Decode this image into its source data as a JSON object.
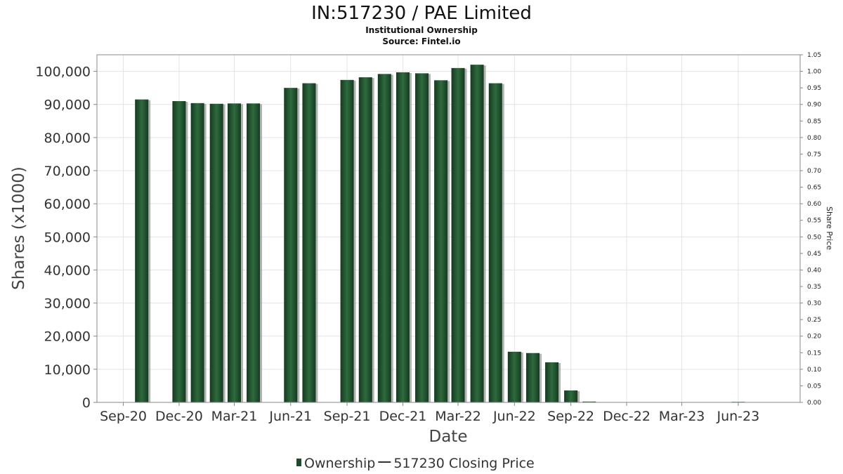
{
  "chart_data": {
    "type": "bar",
    "title": "IN:517230 / PAE Limited",
    "subtitle_1": "Institutional Ownership",
    "subtitle_2": "Source: Fintel.io",
    "xlabel": "Date",
    "ylabel": "Shares (x1000)",
    "y2label": "Share Price",
    "ylim": [
      0,
      105000
    ],
    "y2lim": [
      0,
      1.05
    ],
    "yticks": [
      "0",
      "10,000",
      "20,000",
      "30,000",
      "40,000",
      "50,000",
      "60,000",
      "70,000",
      "80,000",
      "90,000",
      "100,000"
    ],
    "y2ticks": [
      "0.00",
      "0.05",
      "0.10",
      "0.15",
      "0.20",
      "0.25",
      "0.30",
      "0.35",
      "0.40",
      "0.45",
      "0.50",
      "0.55",
      "0.60",
      "0.65",
      "0.70",
      "0.75",
      "0.80",
      "0.85",
      "0.90",
      "0.95",
      "1.00",
      "1.05"
    ],
    "xticks": [
      "Sep-20",
      "Dec-20",
      "Mar-21",
      "Jun-21",
      "Sep-21",
      "Dec-21",
      "Mar-22",
      "Jun-22",
      "Sep-22",
      "Dec-22",
      "Mar-23",
      "Jun-23"
    ],
    "grid": true,
    "legend_position": "bottom",
    "series": [
      {
        "name": "Ownership",
        "color": "#1f4a2c",
        "points": [
          {
            "x": "2020-10-01",
            "y": 91500
          },
          {
            "x": "2020-12-01",
            "y": 91000
          },
          {
            "x": "2020-12-31",
            "y": 90400
          },
          {
            "x": "2021-01-31",
            "y": 90200
          },
          {
            "x": "2021-03-01",
            "y": 90300
          },
          {
            "x": "2021-04-01",
            "y": 90300
          },
          {
            "x": "2021-06-01",
            "y": 95000
          },
          {
            "x": "2021-07-01",
            "y": 96400
          },
          {
            "x": "2021-09-01",
            "y": 97400
          },
          {
            "x": "2021-10-01",
            "y": 98200
          },
          {
            "x": "2021-11-01",
            "y": 99200
          },
          {
            "x": "2021-12-01",
            "y": 99700
          },
          {
            "x": "2022-01-01",
            "y": 99400
          },
          {
            "x": "2022-02-01",
            "y": 97300
          },
          {
            "x": "2022-03-01",
            "y": 101000
          },
          {
            "x": "2022-04-01",
            "y": 102000
          },
          {
            "x": "2022-05-01",
            "y": 96400
          },
          {
            "x": "2022-06-01",
            "y": 15300
          },
          {
            "x": "2022-07-01",
            "y": 14900
          },
          {
            "x": "2022-08-01",
            "y": 12100
          },
          {
            "x": "2022-09-01",
            "y": 3600
          },
          {
            "x": "2022-10-01",
            "y": 250
          },
          {
            "x": "2023-06-01",
            "y": 100
          }
        ]
      },
      {
        "name": "517230 Closing Price",
        "color": "#333333",
        "points": []
      }
    ]
  }
}
